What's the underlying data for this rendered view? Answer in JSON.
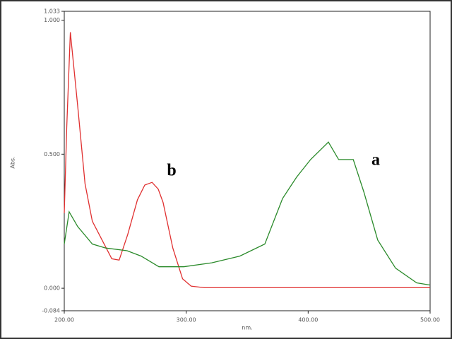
{
  "chart_data": {
    "type": "line",
    "xlabel": "nm.",
    "ylabel": "Abs.",
    "annotations": [
      "a",
      "b"
    ],
    "series": [
      {
        "name": "b",
        "color": "#e03030",
        "x": [
          200,
          202,
          205,
          211,
          217,
          223,
          231,
          239,
          245,
          252,
          260,
          266,
          272,
          277,
          281,
          289,
          297,
          304,
          315,
          400,
          500
        ],
        "values": [
          0.28,
          0.6,
          0.955,
          0.68,
          0.39,
          0.25,
          0.18,
          0.11,
          0.105,
          0.2,
          0.33,
          0.385,
          0.395,
          0.37,
          0.32,
          0.15,
          0.035,
          0.008,
          0.002,
          0.002,
          0.002
        ]
      },
      {
        "name": "a",
        "color": "#2a8a2a",
        "x": [
          200,
          204,
          211,
          223,
          234,
          251.5,
          263,
          277.6,
          298,
          321,
          344,
          364.5,
          379,
          390.6,
          402,
          416.6,
          425,
          437,
          445.6,
          457,
          471.6,
          489,
          500
        ],
        "values": [
          0.165,
          0.285,
          0.23,
          0.165,
          0.15,
          0.14,
          0.12,
          0.08,
          0.08,
          0.095,
          0.12,
          0.165,
          0.335,
          0.415,
          0.48,
          0.545,
          0.48,
          0.48,
          0.36,
          0.18,
          0.075,
          0.02,
          0.012
        ]
      }
    ],
    "xlim": [
      200,
      500
    ],
    "xticks": [
      {
        "value": 200,
        "label": "200.00"
      },
      {
        "value": 300,
        "label": "300.00"
      },
      {
        "value": 400,
        "label": "400.00"
      },
      {
        "value": 500,
        "label": "500.00"
      }
    ],
    "ylim": [
      -0.084,
      1.033
    ],
    "yticks": [
      -0.084,
      {
        "value": 0,
        "label": "0.000"
      },
      {
        "value": 0.5,
        "label": "0.500"
      },
      {
        "value": 1,
        "label": "1.000"
      },
      1.033
    ],
    "grid": false,
    "legend": false
  }
}
